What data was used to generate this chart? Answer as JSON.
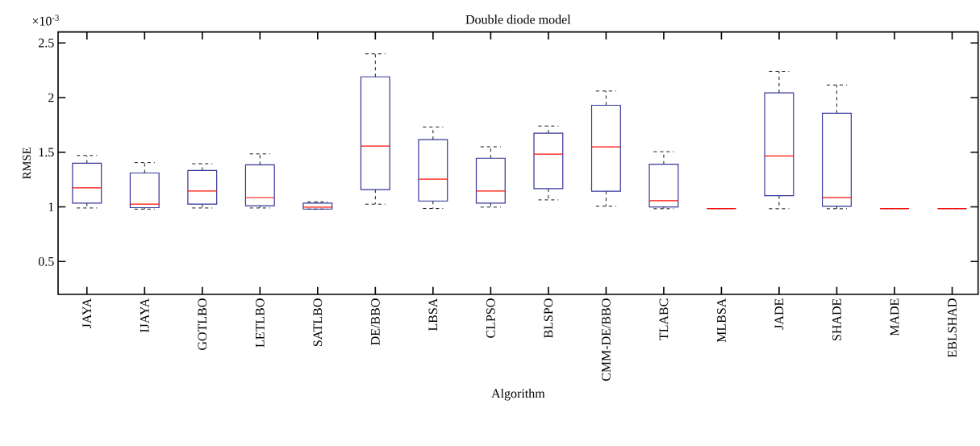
{
  "chart_data": {
    "type": "box",
    "title": "Double diode model",
    "xlabel": "Algorithm",
    "ylabel": "RMSE",
    "annotations": [
      "×10$^{-3}$"
    ],
    "categories": [
      "JAYA",
      "IJAYA",
      "GOTLBO",
      "LETLBO",
      "SATLBO",
      "DE/BBO",
      "LBSA",
      "CLPSO",
      "BLSPO",
      "CMM-DE/BBO",
      "TLABC",
      "MLBSA",
      "JADE",
      "SHADE",
      "MADE",
      "EBLSHAD"
    ],
    "color": "#34349a",
    "ylim": [
      0.2,
      2.6
    ],
    "yticks": [
      0.5,
      1,
      1.5,
      2,
      2.5
    ],
    "grid": false,
    "boxes": [
      {
        "low": 0.99,
        "q1": 1.035,
        "median": 1.175,
        "q3": 1.4,
        "high": 1.47
      },
      {
        "low": 0.98,
        "q1": 0.993,
        "median": 1.025,
        "q3": 1.31,
        "high": 1.405
      },
      {
        "low": 0.99,
        "q1": 1.025,
        "median": 1.145,
        "q3": 1.333,
        "high": 1.395
      },
      {
        "low": 0.99,
        "q1": 1.01,
        "median": 1.085,
        "q3": 1.385,
        "high": 1.485
      },
      {
        "low": 0.98,
        "q1": 0.98,
        "median": 0.998,
        "q3": 1.035,
        "high": 1.047
      },
      {
        "low": 1.025,
        "q1": 1.158,
        "median": 1.557,
        "q3": 2.19,
        "high": 2.4
      },
      {
        "low": 0.985,
        "q1": 1.054,
        "median": 1.254,
        "q3": 1.615,
        "high": 1.73
      },
      {
        "low": 0.998,
        "q1": 1.035,
        "median": 1.145,
        "q3": 1.445,
        "high": 1.55
      },
      {
        "low": 1.064,
        "q1": 1.167,
        "median": 1.483,
        "q3": 1.675,
        "high": 1.74
      },
      {
        "low": 1.007,
        "q1": 1.143,
        "median": 1.549,
        "q3": 1.93,
        "high": 2.06
      },
      {
        "low": 0.983,
        "q1": 1.0,
        "median": 1.057,
        "q3": 1.39,
        "high": 1.505
      },
      {
        "low": 0.985,
        "q1": 0.985,
        "median": 0.985,
        "q3": 0.985,
        "high": 0.985
      },
      {
        "low": 0.983,
        "q1": 1.103,
        "median": 1.466,
        "q3": 2.044,
        "high": 2.24
      },
      {
        "low": 0.983,
        "q1": 1.007,
        "median": 1.086,
        "q3": 1.857,
        "high": 2.115
      },
      {
        "low": 0.985,
        "q1": 0.985,
        "median": 0.985,
        "q3": 0.985,
        "high": 0.985
      },
      {
        "low": 0.985,
        "q1": 0.985,
        "median": 0.985,
        "q3": 0.985,
        "high": 0.985
      }
    ]
  }
}
